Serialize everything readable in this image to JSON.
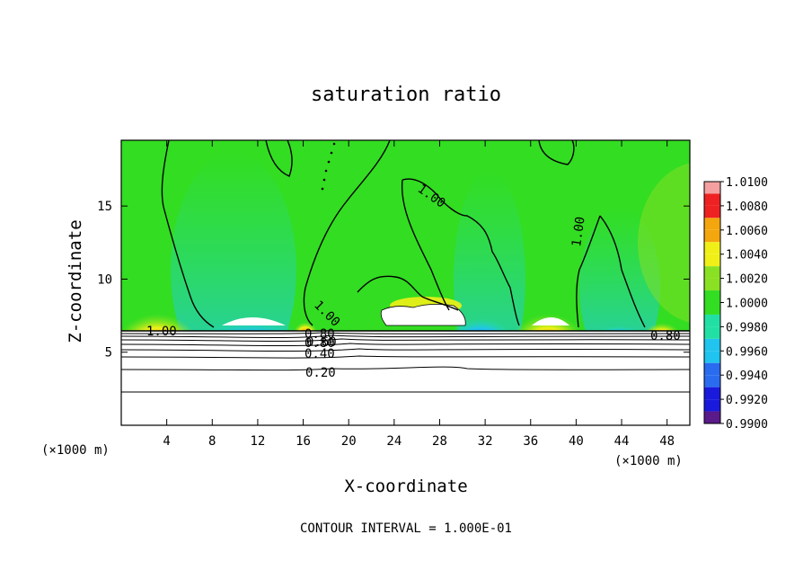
{
  "chart_data": {
    "type": "heatmap",
    "title": "saturation ratio",
    "xlabel": "X-coordinate",
    "ylabel": "Z-coordinate",
    "x_unit": "(×1000 m)",
    "y_unit": "(×1000 m)",
    "xlim": [
      0,
      50
    ],
    "ylim": [
      0,
      19.5
    ],
    "x_ticks": [
      4,
      8,
      12,
      16,
      20,
      24,
      28,
      32,
      36,
      40,
      44,
      48
    ],
    "y_ticks": [
      5,
      10,
      15
    ],
    "colorbar": {
      "levels": [
        "0.9900",
        "0.9920",
        "0.9940",
        "0.9960",
        "0.9980",
        "1.0000",
        "1.0020",
        "1.0040",
        "1.0060",
        "1.0080",
        "1.0100"
      ],
      "colors": [
        "#5a1a8a",
        "#1a1adc",
        "#2a6cf0",
        "#20c4ee",
        "#22e0a4",
        "#33dd22",
        "#8ae022",
        "#f0f018",
        "#f4a60e",
        "#ee2222",
        "#f4a0a0"
      ]
    },
    "contour_labels": [
      "1.00",
      "1.00",
      "1.00",
      "1.00",
      "0.80",
      "0.80",
      "0.60",
      "0.40",
      "0.20",
      "0.80"
    ],
    "footer": "CONTOUR INTERVAL = 1.000E-01"
  }
}
